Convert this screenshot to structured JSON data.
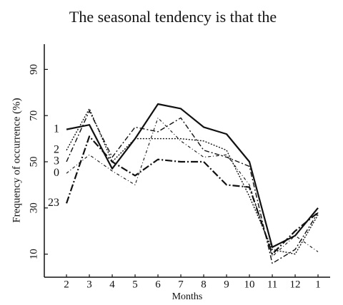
{
  "header_text": "The seasonal tendency is that the",
  "chart_data": {
    "type": "line",
    "y_label": "Frequency of occurrence (%)",
    "x_label": "Months",
    "categories": [
      "2",
      "3",
      "4",
      "5",
      "6",
      "7",
      "8",
      "9",
      "10",
      "11",
      "12",
      "1"
    ],
    "series": [
      {
        "name": "1",
        "color": "#111111",
        "width": 2.2,
        "dash": "none",
        "values": [
          64,
          66,
          47,
          60,
          75,
          73,
          65,
          62,
          50,
          13,
          18,
          30
        ]
      },
      {
        "name": "2",
        "color": "#111111",
        "width": 1.4,
        "dash": "2 2",
        "values": [
          55,
          73,
          50,
          60,
          60,
          60,
          59,
          55,
          35,
          12,
          10,
          27
        ]
      },
      {
        "name": "3",
        "color": "#111111",
        "width": 1.4,
        "dash": "7 3 2 3",
        "values": [
          50,
          72,
          52,
          65,
          63,
          69,
          55,
          52,
          48,
          6,
          12,
          28
        ]
      },
      {
        "name": "0",
        "color": "#111111",
        "width": 1.1,
        "dash": "4 3 1 3",
        "values": [
          45,
          53,
          46,
          40,
          69,
          59,
          52,
          53,
          40,
          9,
          18,
          11
        ]
      },
      {
        "name": "23",
        "color": "#111111",
        "width": 2.2,
        "dash": "10 3 2 3",
        "values": [
          32,
          61,
          50,
          44,
          51,
          50,
          50,
          40,
          39,
          10,
          20,
          28
        ]
      }
    ],
    "ylim": [
      0,
      100
    ],
    "yticks": [
      10,
      30,
      50,
      70,
      90
    ]
  }
}
